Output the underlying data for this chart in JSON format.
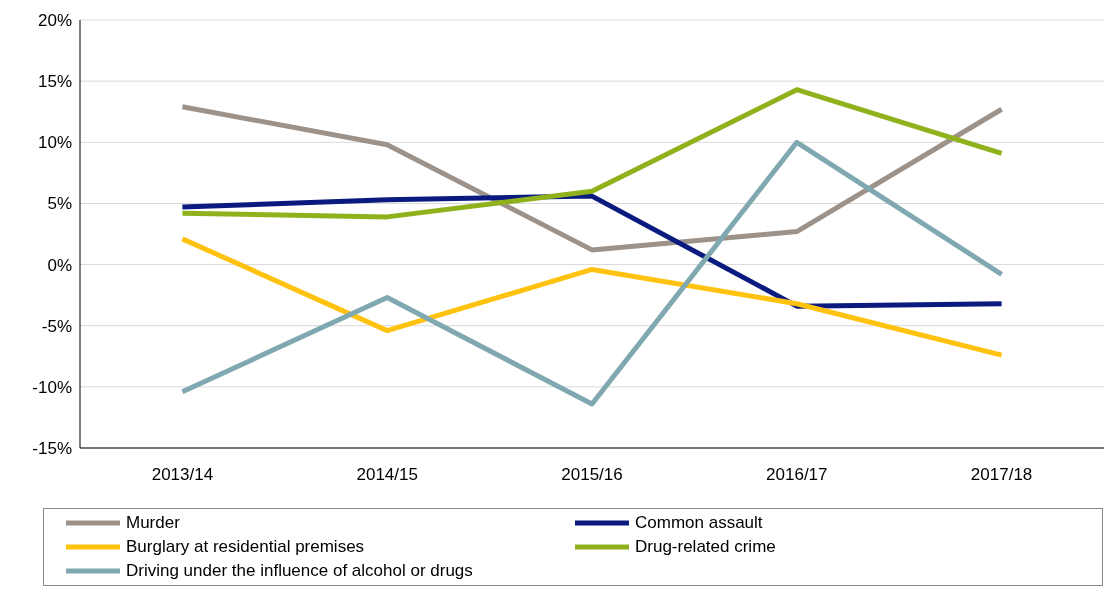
{
  "chart_data": {
    "type": "line",
    "categories": [
      "2013/14",
      "2014/15",
      "2015/16",
      "2016/17",
      "2017/18"
    ],
    "series": [
      {
        "name": "Murder",
        "color": "#9c928a",
        "values": [
          12.9,
          9.8,
          1.2,
          2.7,
          12.7
        ]
      },
      {
        "name": "Common assault",
        "color": "#0a1a7f",
        "values": [
          4.7,
          5.3,
          5.6,
          -3.4,
          -3.2
        ]
      },
      {
        "name": "Burglary at residential premises",
        "color": "#ffc20e",
        "values": [
          2.1,
          -5.4,
          -0.4,
          -3.2,
          -7.4
        ]
      },
      {
        "name": "Drug-related crime",
        "color": "#8fb21c",
        "values": [
          4.2,
          3.9,
          6.0,
          14.3,
          9.1
        ]
      },
      {
        "name": "Driving under the influence of alcohol or drugs",
        "color": "#7fa8b0",
        "values": [
          -10.4,
          -2.7,
          -11.4,
          10.0,
          -0.8
        ]
      }
    ],
    "ylim": [
      -15,
      20
    ],
    "yticks": [
      {
        "value": -15,
        "label": "-15%"
      },
      {
        "value": -10,
        "label": "-10%"
      },
      {
        "value": -5,
        "label": "-5%"
      },
      {
        "value": 0,
        "label": "0%"
      },
      {
        "value": 5,
        "label": "5%"
      },
      {
        "value": 10,
        "label": "10%"
      },
      {
        "value": 15,
        "label": "15%"
      },
      {
        "value": 20,
        "label": "20%"
      }
    ],
    "grid": "y",
    "legend": "bottom",
    "marker": "none",
    "line_style": "solid"
  }
}
